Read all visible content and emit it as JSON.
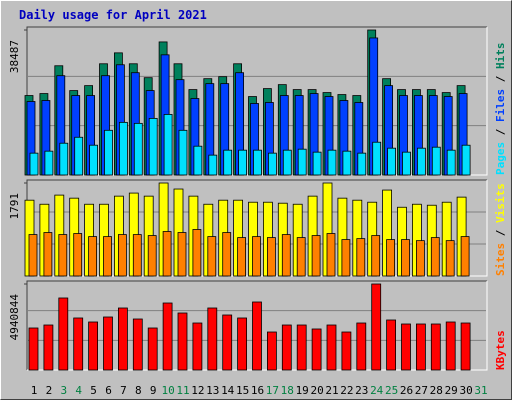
{
  "chart_data": [
    {
      "type": "bar",
      "title": "Daily usage for April 2021",
      "ylim": [
        0,
        38487
      ],
      "yticks": [
        38487
      ],
      "legend_separator": " / ",
      "series": [
        {
          "name": "Hits",
          "color": "#00805c",
          "values": [
            21088,
            21615,
            28996,
            22406,
            23724,
            29523,
            32423,
            29523,
            25833,
            35322,
            29523,
            22670,
            25569,
            26097,
            29523,
            20824,
            22933,
            23988,
            22670,
            22670,
            21879,
            21352,
            21088,
            38487,
            25569,
            22670,
            22670,
            22670,
            21879,
            23724,
            null
          ]
        },
        {
          "name": "Files",
          "color": "#0040ff",
          "values": [
            19506,
            19770,
            26360,
            21088,
            21088,
            26360,
            29260,
            27151,
            22406,
            31896,
            25306,
            20297,
            24251,
            24251,
            27151,
            18979,
            19243,
            21088,
            21088,
            21615,
            20824,
            19770,
            19243,
            36377,
            23724,
            21088,
            21088,
            21088,
            20824,
            21615,
            null
          ]
        },
        {
          "name": "Pages",
          "color": "#00e0ff",
          "values": [
            5799,
            6326,
            8435,
            10017,
            7908,
            11862,
            13971,
            13707,
            15025,
            16080,
            11862,
            7644,
            5272,
            6590,
            6590,
            6590,
            5799,
            6590,
            6854,
            6063,
            6590,
            6326,
            5799,
            8699,
            7117,
            6063,
            7117,
            7381,
            6590,
            7908,
            null
          ]
        }
      ]
    },
    {
      "type": "bar",
      "ylim": [
        0,
        1791
      ],
      "yticks": [
        1791
      ],
      "legend_separator": " / ",
      "series": [
        {
          "name": "Visits",
          "color": "#ffff00",
          "values": [
            1460,
            1382,
            1558,
            1499,
            1382,
            1382,
            1538,
            1597,
            1538,
            1791,
            1675,
            1538,
            1382,
            1460,
            1460,
            1421,
            1421,
            1402,
            1382,
            1538,
            1791,
            1499,
            1460,
            1421,
            1655,
            1324,
            1382,
            1363,
            1421,
            1519,
            null
          ]
        },
        {
          "name": "Sites",
          "color": "#ff8000",
          "values": [
            798,
            837,
            798,
            818,
            759,
            759,
            798,
            798,
            779,
            857,
            837,
            896,
            759,
            837,
            740,
            759,
            740,
            798,
            740,
            779,
            818,
            701,
            720,
            779,
            701,
            701,
            681,
            740,
            681,
            759,
            null
          ]
        }
      ]
    },
    {
      "type": "bar",
      "ylim": [
        0,
        4940844
      ],
      "yticks": [
        4940844
      ],
      "categories": [
        "1",
        "2",
        "3",
        "4",
        "5",
        "6",
        "7",
        "8",
        "9",
        "10",
        "11",
        "12",
        "13",
        "14",
        "15",
        "16",
        "17",
        "18",
        "19",
        "20",
        "21",
        "22",
        "23",
        "24",
        "25",
        "26",
        "27",
        "28",
        "29",
        "30",
        "31"
      ],
      "category_colors": [
        "#000000",
        "#000000",
        "#008040",
        "#008040",
        "#000000",
        "#000000",
        "#000000",
        "#000000",
        "#000000",
        "#008040",
        "#008040",
        "#000000",
        "#000000",
        "#000000",
        "#000000",
        "#000000",
        "#008040",
        "#008040",
        "#000000",
        "#000000",
        "#000000",
        "#000000",
        "#000000",
        "#008040",
        "#008040",
        "#000000",
        "#000000",
        "#000000",
        "#000000",
        "#000000",
        "#008040"
      ],
      "series": [
        {
          "name": "KBytes",
          "color": "#ff0000",
          "values": [
            2413000,
            2585000,
            4137000,
            2988000,
            2758000,
            3045000,
            3562000,
            2930000,
            2413000,
            3849000,
            3275000,
            2700000,
            3562000,
            3160000,
            2988000,
            3907000,
            2183000,
            2585000,
            2585000,
            2356000,
            2585000,
            2183000,
            2700000,
            4940844,
            2873000,
            2643000,
            2643000,
            2643000,
            2758000,
            2700000,
            null
          ]
        }
      ]
    }
  ]
}
